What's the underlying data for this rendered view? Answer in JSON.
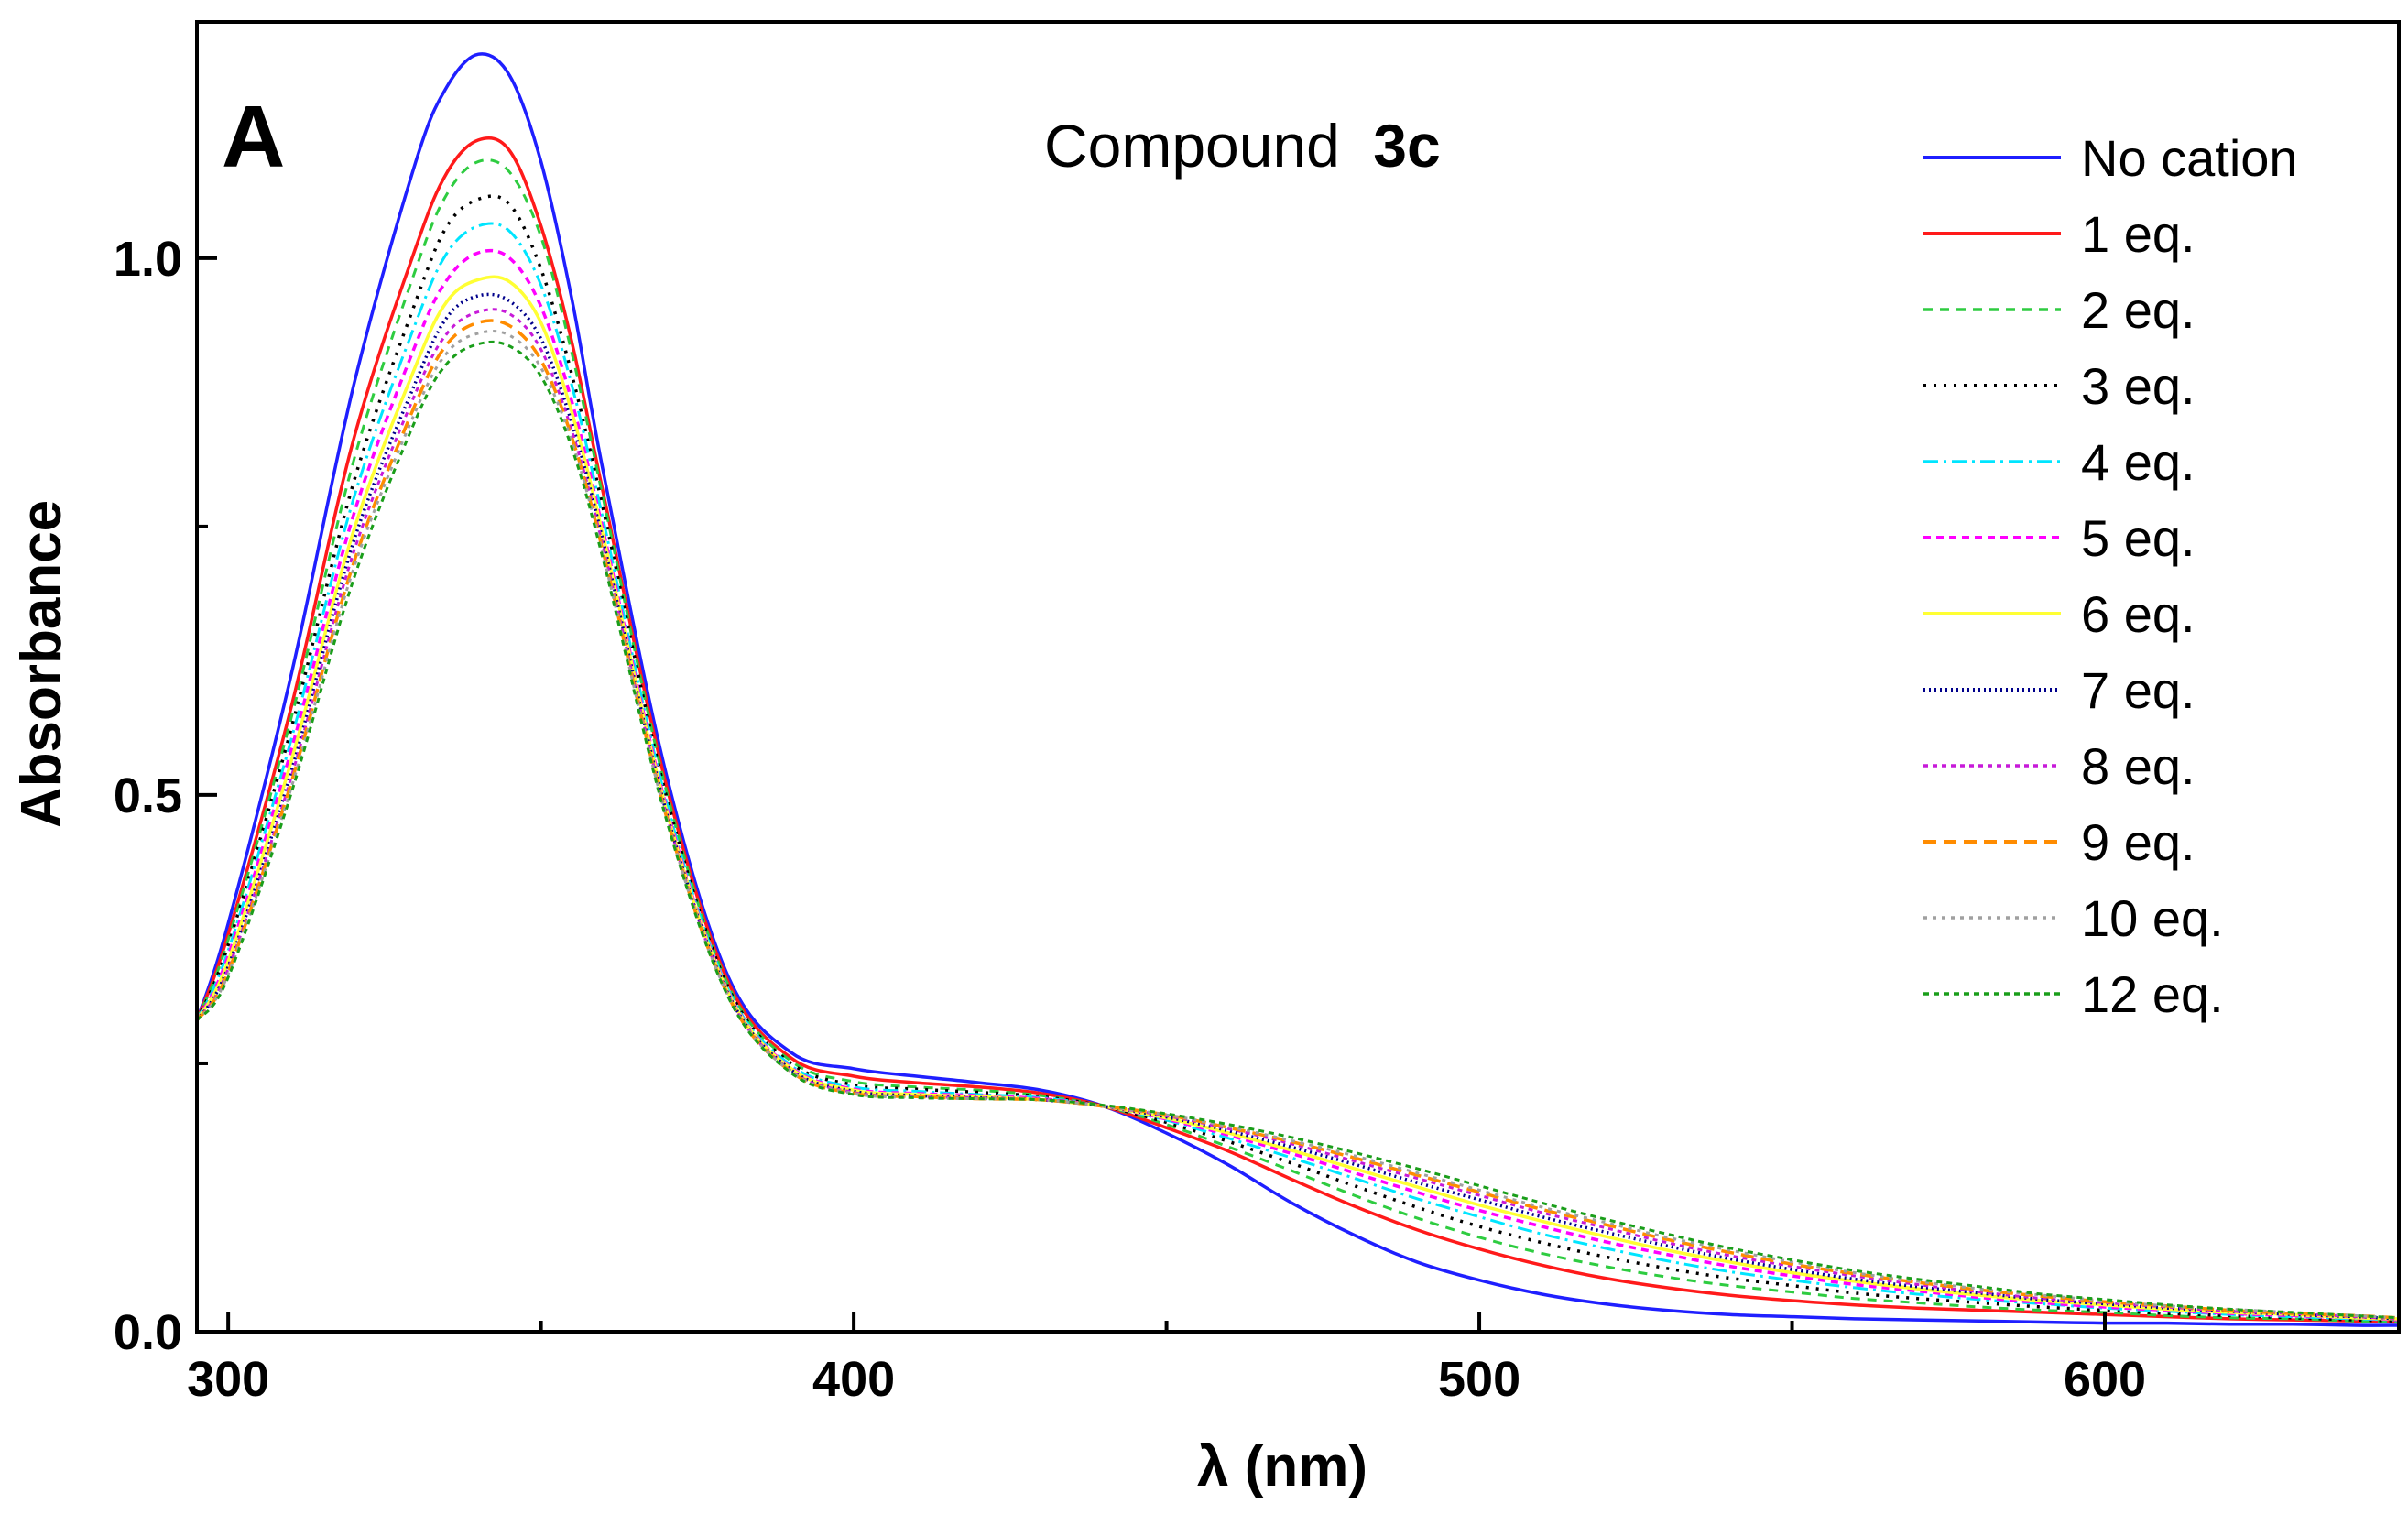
{
  "chart_data": {
    "type": "line",
    "panel_label": "A",
    "title": "Compound",
    "title_bold": "3c",
    "xlabel": "λ (nm)",
    "ylabel": "Absorbance",
    "xlim": [
      295,
      647
    ],
    "ylim": [
      0.0,
      1.22
    ],
    "x_ticks": [
      300,
      400,
      500,
      600
    ],
    "x_tick_labels": [
      "300",
      "400",
      "500",
      "600"
    ],
    "x_minor_ticks": [
      350,
      450,
      550
    ],
    "y_ticks": [
      0.0,
      0.5,
      1.0
    ],
    "y_tick_labels": [
      "0.0",
      "0.5",
      "1.0"
    ],
    "y_minor_ticks": [
      0.25,
      0.75
    ],
    "grid": false,
    "legend_position": "top-right",
    "x": [
      295,
      300,
      310,
      320,
      330,
      335,
      340,
      345,
      350,
      355,
      360,
      370,
      380,
      390,
      400,
      410,
      420,
      430,
      440,
      450,
      460,
      470,
      480,
      490,
      500,
      510,
      520,
      530,
      540,
      550,
      560,
      570,
      580,
      590,
      600,
      610,
      620,
      630,
      640,
      647
    ],
    "series": [
      {
        "name": "No cation",
        "color": "#1f1fff",
        "dash": "solid",
        "width": 3.5,
        "values": [
          0.29,
          0.38,
          0.61,
          0.88,
          1.09,
          1.16,
          1.19,
          1.17,
          1.09,
          0.96,
          0.8,
          0.52,
          0.33,
          0.26,
          0.245,
          0.238,
          0.232,
          0.225,
          0.21,
          0.185,
          0.155,
          0.12,
          0.09,
          0.065,
          0.048,
          0.035,
          0.026,
          0.02,
          0.016,
          0.014,
          0.012,
          0.011,
          0.01,
          0.009,
          0.008,
          0.008,
          0.007,
          0.007,
          0.006,
          0.006
        ]
      },
      {
        "name": "1 eq.",
        "color": "#ff1a1a",
        "dash": "solid",
        "width": 3.5,
        "values": [
          0.29,
          0.37,
          0.58,
          0.83,
          1.01,
          1.08,
          1.11,
          1.1,
          1.03,
          0.92,
          0.78,
          0.51,
          0.325,
          0.255,
          0.238,
          0.232,
          0.228,
          0.222,
          0.21,
          0.19,
          0.168,
          0.142,
          0.117,
          0.095,
          0.077,
          0.062,
          0.05,
          0.041,
          0.034,
          0.029,
          0.025,
          0.022,
          0.02,
          0.018,
          0.016,
          0.014,
          0.012,
          0.011,
          0.01,
          0.009
        ]
      },
      {
        "name": "2 eq.",
        "color": "#2ecc40",
        "dash": "10,8",
        "width": 3,
        "values": [
          0.29,
          0.365,
          0.57,
          0.81,
          0.99,
          1.06,
          1.09,
          1.08,
          1.02,
          0.91,
          0.775,
          0.505,
          0.322,
          0.252,
          0.233,
          0.228,
          0.225,
          0.22,
          0.21,
          0.193,
          0.172,
          0.15,
          0.127,
          0.106,
          0.088,
          0.073,
          0.061,
          0.051,
          0.043,
          0.037,
          0.031,
          0.027,
          0.023,
          0.02,
          0.018,
          0.015,
          0.013,
          0.012,
          0.01,
          0.009
        ]
      },
      {
        "name": "3 eq.",
        "color": "#000000",
        "dash": "3,8",
        "width": 3.5,
        "values": [
          0.29,
          0.36,
          0.56,
          0.79,
          0.96,
          1.03,
          1.055,
          1.05,
          0.99,
          0.89,
          0.765,
          0.5,
          0.32,
          0.25,
          0.23,
          0.226,
          0.223,
          0.219,
          0.21,
          0.195,
          0.177,
          0.157,
          0.136,
          0.116,
          0.098,
          0.083,
          0.07,
          0.059,
          0.05,
          0.043,
          0.036,
          0.031,
          0.027,
          0.023,
          0.02,
          0.017,
          0.015,
          0.013,
          0.011,
          0.01
        ]
      },
      {
        "name": "4 eq.",
        "color": "#00e5ff",
        "dash": "16,6,3,6",
        "width": 3,
        "values": [
          0.29,
          0.355,
          0.55,
          0.775,
          0.94,
          1.005,
          1.03,
          1.025,
          0.975,
          0.88,
          0.755,
          0.495,
          0.318,
          0.248,
          0.228,
          0.224,
          0.221,
          0.218,
          0.21,
          0.197,
          0.18,
          0.162,
          0.143,
          0.124,
          0.107,
          0.091,
          0.078,
          0.066,
          0.056,
          0.048,
          0.041,
          0.035,
          0.03,
          0.026,
          0.022,
          0.019,
          0.016,
          0.014,
          0.012,
          0.011
        ]
      },
      {
        "name": "5 eq.",
        "color": "#ff00ff",
        "dash": "8,6",
        "width": 3.5,
        "values": [
          0.29,
          0.35,
          0.54,
          0.76,
          0.92,
          0.98,
          1.005,
          1.0,
          0.955,
          0.865,
          0.745,
          0.49,
          0.316,
          0.246,
          0.226,
          0.222,
          0.22,
          0.217,
          0.21,
          0.198,
          0.183,
          0.166,
          0.148,
          0.13,
          0.113,
          0.098,
          0.084,
          0.072,
          0.061,
          0.052,
          0.044,
          0.038,
          0.032,
          0.027,
          0.023,
          0.02,
          0.017,
          0.015,
          0.013,
          0.011
        ]
      },
      {
        "name": "6 eq.",
        "color": "#ffff33",
        "dash": "solid",
        "width": 3.5,
        "values": [
          0.29,
          0.345,
          0.53,
          0.745,
          0.9,
          0.96,
          0.98,
          0.978,
          0.94,
          0.855,
          0.74,
          0.487,
          0.315,
          0.245,
          0.225,
          0.221,
          0.219,
          0.216,
          0.21,
          0.199,
          0.185,
          0.169,
          0.152,
          0.135,
          0.118,
          0.103,
          0.089,
          0.076,
          0.065,
          0.055,
          0.047,
          0.04,
          0.034,
          0.029,
          0.025,
          0.021,
          0.018,
          0.016,
          0.013,
          0.012
        ]
      },
      {
        "name": "7 eq.",
        "color": "#00008b",
        "dash": "2,4",
        "width": 3.5,
        "values": [
          0.29,
          0.34,
          0.52,
          0.735,
          0.885,
          0.945,
          0.965,
          0.96,
          0.925,
          0.845,
          0.735,
          0.485,
          0.314,
          0.244,
          0.224,
          0.22,
          0.218,
          0.216,
          0.21,
          0.2,
          0.187,
          0.172,
          0.156,
          0.139,
          0.123,
          0.107,
          0.093,
          0.08,
          0.068,
          0.058,
          0.049,
          0.042,
          0.036,
          0.03,
          0.026,
          0.022,
          0.019,
          0.016,
          0.014,
          0.012
        ]
      },
      {
        "name": "8 eq.",
        "color": "#c71ad9",
        "dash": "5,5",
        "width": 3,
        "values": [
          0.29,
          0.338,
          0.515,
          0.725,
          0.875,
          0.93,
          0.95,
          0.948,
          0.915,
          0.838,
          0.73,
          0.483,
          0.313,
          0.243,
          0.223,
          0.219,
          0.218,
          0.216,
          0.21,
          0.201,
          0.189,
          0.175,
          0.159,
          0.143,
          0.127,
          0.111,
          0.097,
          0.083,
          0.071,
          0.061,
          0.052,
          0.044,
          0.037,
          0.031,
          0.027,
          0.023,
          0.019,
          0.017,
          0.014,
          0.012
        ]
      },
      {
        "name": "9 eq.",
        "color": "#ff8c00",
        "dash": "14,8",
        "width": 3.5,
        "values": [
          0.29,
          0.335,
          0.51,
          0.715,
          0.865,
          0.92,
          0.94,
          0.937,
          0.905,
          0.832,
          0.725,
          0.481,
          0.312,
          0.242,
          0.222,
          0.219,
          0.217,
          0.216,
          0.21,
          0.202,
          0.19,
          0.177,
          0.162,
          0.146,
          0.13,
          0.114,
          0.1,
          0.086,
          0.074,
          0.063,
          0.054,
          0.046,
          0.039,
          0.033,
          0.028,
          0.024,
          0.02,
          0.017,
          0.015,
          0.013
        ]
      },
      {
        "name": "10 eq.",
        "color": "#a0a0a0",
        "dash": "4,6",
        "width": 3,
        "values": [
          0.29,
          0.333,
          0.505,
          0.71,
          0.858,
          0.912,
          0.93,
          0.928,
          0.898,
          0.828,
          0.722,
          0.48,
          0.312,
          0.242,
          0.222,
          0.218,
          0.217,
          0.216,
          0.21,
          0.202,
          0.191,
          0.178,
          0.164,
          0.148,
          0.132,
          0.116,
          0.102,
          0.088,
          0.076,
          0.065,
          0.055,
          0.047,
          0.04,
          0.034,
          0.029,
          0.024,
          0.021,
          0.018,
          0.015,
          0.013
        ]
      },
      {
        "name": "12 eq.",
        "color": "#1a9e1a",
        "dash": "6,5",
        "width": 3,
        "values": [
          0.29,
          0.33,
          0.5,
          0.7,
          0.85,
          0.902,
          0.92,
          0.918,
          0.89,
          0.822,
          0.718,
          0.478,
          0.311,
          0.241,
          0.221,
          0.218,
          0.217,
          0.216,
          0.211,
          0.203,
          0.193,
          0.181,
          0.167,
          0.152,
          0.136,
          0.12,
          0.105,
          0.091,
          0.078,
          0.067,
          0.057,
          0.049,
          0.042,
          0.035,
          0.03,
          0.025,
          0.021,
          0.018,
          0.015,
          0.013
        ]
      }
    ]
  }
}
